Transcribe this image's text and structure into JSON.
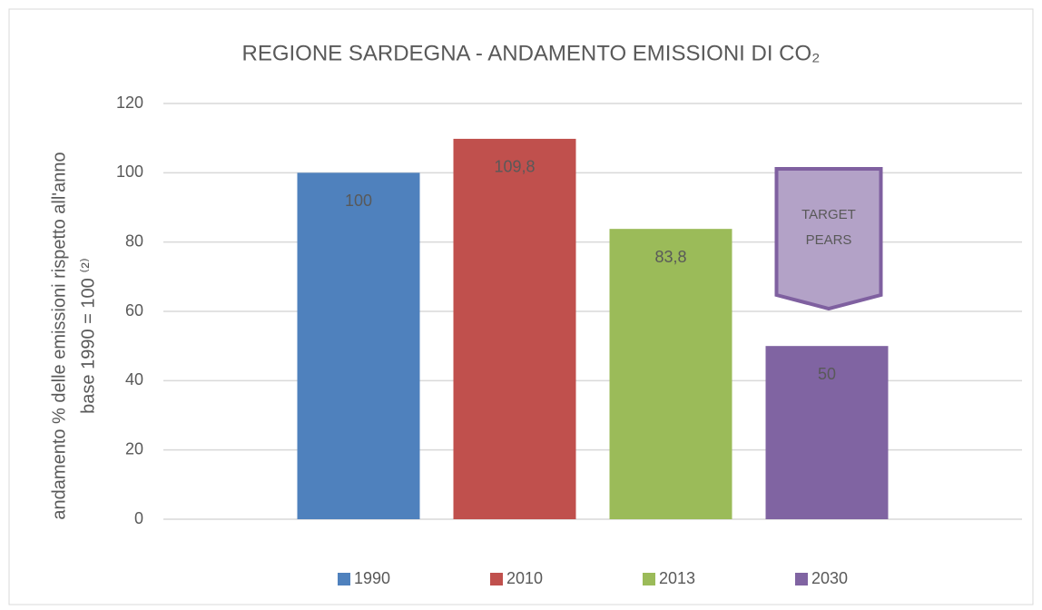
{
  "chart_data": {
    "type": "bar",
    "title": "REGIONE SARDEGNA - ANDAMENTO EMISSIONI DI CO₂",
    "y_label": [
      "andamento % delle emissioni rispetto all'anno",
      "base 1990 = 100 ⁽²⁾"
    ],
    "categories": [
      null
    ],
    "series": [
      {
        "name": "1990",
        "color": "#4f81bd",
        "values": [
          100
        ],
        "value_labels": [
          "100"
        ]
      },
      {
        "name": "2010",
        "color": "#c0504d",
        "values": [
          109.8
        ],
        "value_labels": [
          "109,8"
        ]
      },
      {
        "name": "2013",
        "color": "#9bbb59",
        "values": [
          83.8
        ],
        "value_labels": [
          "83,8"
        ]
      },
      {
        "name": "2030",
        "color": "#8064a2",
        "values": [
          50
        ],
        "value_labels": [
          "50"
        ]
      }
    ],
    "annotation": [
      "TARGET",
      "PEARS"
    ],
    "ylim": [
      0,
      120
    ],
    "yticks": [
      0,
      20,
      40,
      60,
      80,
      100,
      120
    ],
    "grid": true,
    "legend": "bottom"
  }
}
